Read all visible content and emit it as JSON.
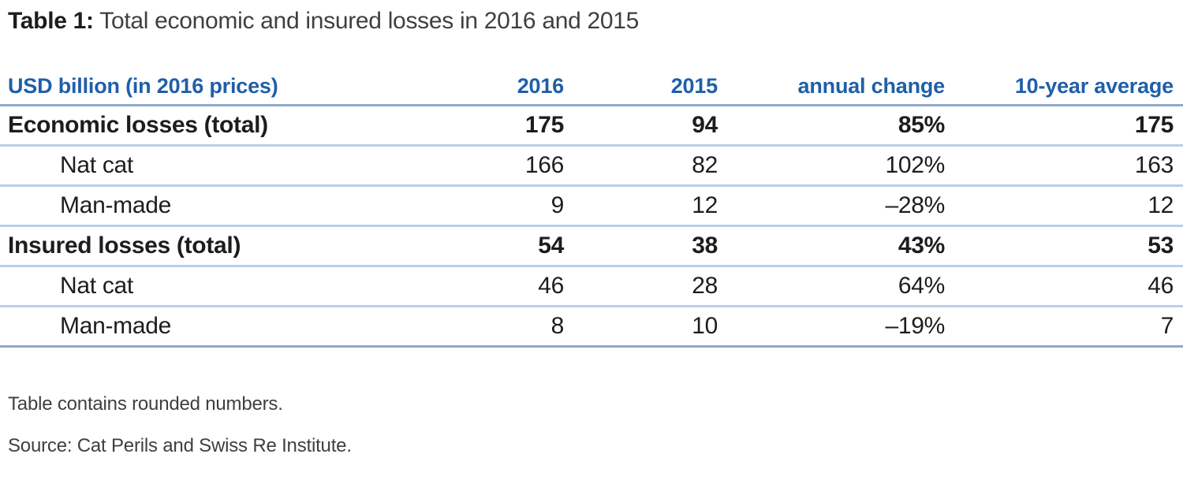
{
  "title": {
    "prefix": "Table 1:",
    "text": " Total economic and insured losses in 2016 and 2015"
  },
  "table": {
    "columns": [
      "USD billion (in 2016 prices)",
      "2016",
      "2015",
      "annual change",
      "10-year average"
    ],
    "rows": [
      {
        "label": "Economic losses (total)",
        "style": "total",
        "values": [
          "175",
          "94",
          "85%",
          "175"
        ]
      },
      {
        "label": "Nat cat",
        "style": "sub",
        "values": [
          "166",
          "82",
          "102%",
          "163"
        ]
      },
      {
        "label": "Man-made",
        "style": "sub",
        "values": [
          "9",
          "12",
          "–28%",
          "12"
        ]
      },
      {
        "label": "Insured losses (total)",
        "style": "total",
        "values": [
          "54",
          "38",
          "43%",
          "53"
        ]
      },
      {
        "label": "Nat cat",
        "style": "sub",
        "values": [
          "46",
          "28",
          "64%",
          "46"
        ]
      },
      {
        "label": "Man-made",
        "style": "sub",
        "values": [
          "8",
          "10",
          "–19%",
          "7"
        ]
      }
    ]
  },
  "footnotes": {
    "rounding_note": "Table contains rounded numbers.",
    "source_note": "Source: Cat Perils and Swiss Re Institute."
  },
  "colors": {
    "accent_blue": "#1f5fa8",
    "rule_light_blue": "#b9cfe9",
    "rule_dark_blue": "#90a9c6",
    "text_dark": "#1d1d1b",
    "text_gray": "#3f3f3e"
  }
}
